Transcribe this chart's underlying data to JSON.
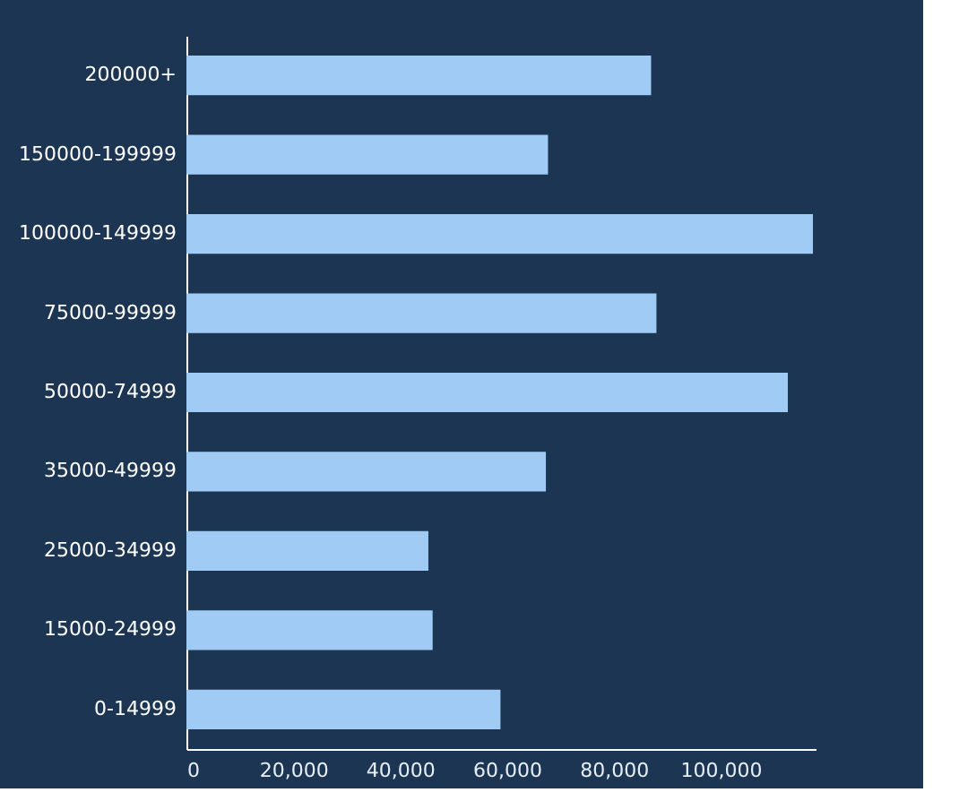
{
  "chart_data": {
    "type": "bar",
    "orientation": "horizontal",
    "categories": [
      "200000+",
      "150000-199999",
      "100000-149999",
      "75000-99999",
      "50000-74999",
      "35000-49999",
      "25000-34999",
      "15000-24999",
      "0-14999"
    ],
    "values": [
      87000,
      67700,
      117300,
      88000,
      112600,
      67300,
      45300,
      46100,
      58800
    ],
    "color": "#9fcbf5",
    "xlim": [
      0,
      117800
    ],
    "xticks": [
      0,
      {
        "value": 20000,
        "label": "20,000"
      },
      {
        "value": 40000,
        "label": "40,000"
      },
      {
        "value": 60000,
        "label": "60,000"
      },
      {
        "value": 80000,
        "label": "80,000"
      },
      {
        "value": 100000,
        "label": "100,000"
      }
    ],
    "grid": false
  }
}
